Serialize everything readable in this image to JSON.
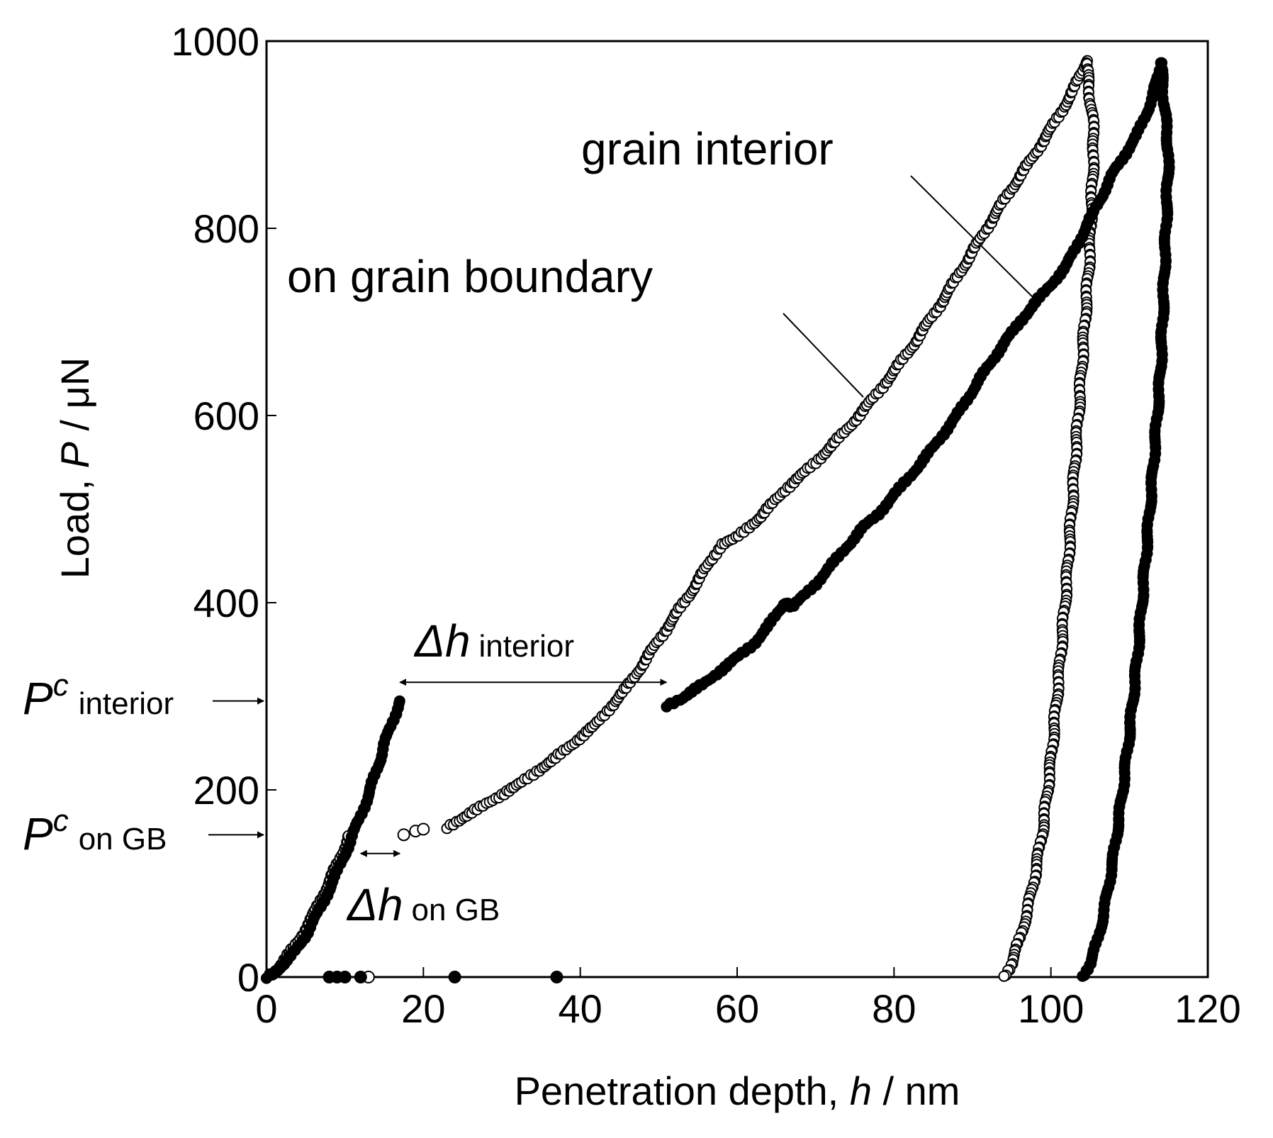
{
  "chart_data": {
    "type": "scatter",
    "title": "",
    "xlabel": "Penetration depth, h / nm",
    "xlabel_parts": {
      "prefix": "Penetration depth, ",
      "var": "h",
      "suffix": " / nm"
    },
    "ylabel": "Load, P / μN",
    "ylabel_parts": {
      "prefix": "Load, ",
      "var": "P",
      "suffix": " / μN"
    },
    "xlim": [
      0,
      120
    ],
    "ylim": [
      0,
      1000
    ],
    "x_ticks": [
      0,
      20,
      40,
      60,
      80,
      100,
      120
    ],
    "y_ticks": [
      0,
      200,
      400,
      600,
      800,
      1000
    ],
    "grid": false,
    "series": [
      {
        "name": "on grain boundary",
        "marker": "open-circle",
        "color": "#000000",
        "loading_pre_popin": {
          "x": [
            0,
            1,
            2,
            3,
            4,
            5,
            6,
            7,
            8,
            9,
            10,
            10.5
          ],
          "y": [
            0,
            6,
            15,
            26,
            38,
            52,
            67,
            84,
            102,
            120,
            140,
            152
          ]
        },
        "popin_points": {
          "x": [
            13,
            17.5,
            19,
            20
          ],
          "y": [
            0,
            152,
            156,
            158
          ]
        },
        "loading_post_popin": {
          "x": [
            23,
            27,
            32,
            37,
            42,
            46,
            50,
            54,
            57,
            58,
            60,
            63,
            66,
            70,
            74,
            78,
            82,
            86,
            90,
            94,
            98,
            101,
            103,
            104.5
          ],
          "y": [
            160,
            180,
            205,
            235,
            270,
            310,
            360,
            410,
            450,
            462,
            470,
            492,
            520,
            550,
            585,
            625,
            670,
            720,
            775,
            830,
            880,
            920,
            950,
            978
          ]
        },
        "unloading": {
          "x": [
            104.5,
            105.5,
            105,
            104,
            103,
            102,
            101,
            100,
            99,
            98,
            97,
            96,
            95,
            94
          ],
          "y": [
            978,
            900,
            780,
            660,
            540,
            420,
            320,
            230,
            160,
            110,
            70,
            40,
            15,
            0
          ]
        }
      },
      {
        "name": "grain interior",
        "marker": "filled-circle",
        "color": "#000000",
        "loading_pre_popin": {
          "x": [
            0,
            1,
            2,
            3,
            4,
            5,
            6,
            7,
            8,
            9,
            10,
            11,
            12,
            13,
            14,
            15,
            16,
            17
          ],
          "y": [
            0,
            5,
            12,
            21,
            32,
            45,
            60,
            76,
            94,
            112,
            132,
            152,
            172,
            195,
            220,
            248,
            272,
            295
          ]
        },
        "popin_points": {
          "x": [
            8,
            9,
            10,
            12,
            24,
            37
          ],
          "y": [
            0,
            0,
            0,
            0,
            0,
            0
          ]
        },
        "loading_post_popin": {
          "x": [
            51,
            53,
            56,
            59,
            62,
            64,
            66,
            67,
            70,
            73,
            76,
            78,
            81,
            84,
            88,
            91,
            93,
            96,
            99,
            102,
            105,
            108,
            111,
            113,
            114
          ],
          "y": [
            290,
            298,
            315,
            335,
            355,
            375,
            400,
            395,
            420,
            450,
            480,
            495,
            525,
            555,
            600,
            640,
            665,
            700,
            730,
            760,
            810,
            860,
            900,
            940,
            978
          ]
        },
        "unloading": {
          "x": [
            114,
            115,
            114.5,
            114,
            113,
            112,
            111,
            110,
            109,
            108,
            107,
            106,
            105,
            104
          ],
          "y": [
            978,
            880,
            760,
            650,
            540,
            440,
            340,
            260,
            190,
            130,
            80,
            40,
            15,
            0
          ]
        }
      }
    ],
    "annotations": {
      "label_grain_interior": "grain interior",
      "label_on_gb": "on grain boundary",
      "delta_h_interior": {
        "symbol": "Δh",
        "sub": "interior",
        "x_from": 17,
        "x_to": 51,
        "y": 315
      },
      "delta_h_gb": {
        "symbol": "Δh",
        "sub": "on GB",
        "x_from": 12,
        "x_to": 17,
        "y": 132
      },
      "pc_interior": {
        "symbol": "P",
        "sup": "c",
        "sub": "interior",
        "y": 295
      },
      "pc_gb": {
        "symbol": "P",
        "sup": "c",
        "sub": "on GB",
        "y": 152
      }
    }
  }
}
